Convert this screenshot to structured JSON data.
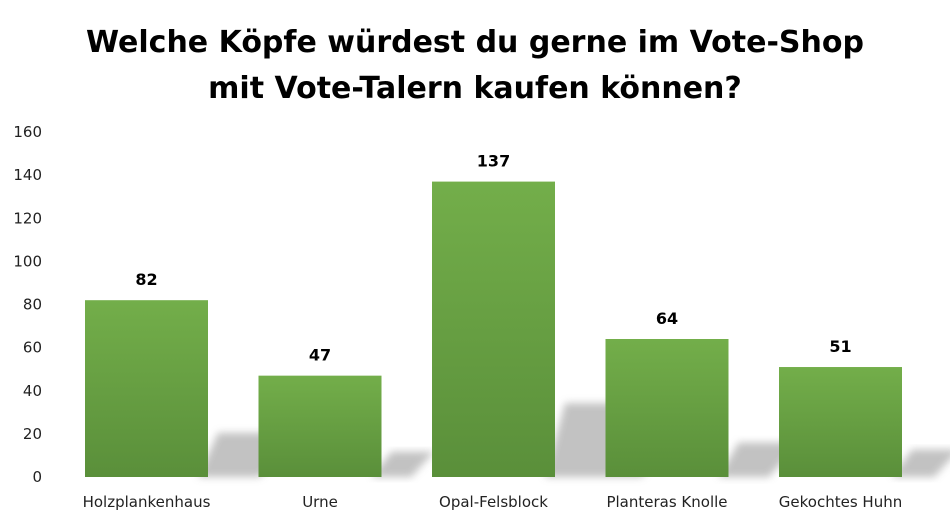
{
  "chart_data": {
    "type": "bar",
    "title": [
      "Welche Köpfe würdest du gerne im Vote-Shop",
      "mit Vote-Talern kaufen können?"
    ],
    "categories": [
      "Holzplankenhaus",
      "Urne",
      "Opal-Felsblock",
      "Planteras Knolle",
      "Gekochtes Huhn"
    ],
    "values": [
      82,
      47,
      137,
      64,
      51
    ],
    "data_labels": [
      "82",
      "47",
      "137",
      "64",
      "51"
    ],
    "xlabel": "",
    "ylabel": "",
    "ylim": [
      0,
      160
    ],
    "yticks": [
      0,
      20,
      40,
      60,
      80,
      100,
      120,
      140,
      160
    ],
    "grid": false,
    "legend": "none",
    "colors": {
      "bar_top": "#73ae4a",
      "bar_bottom": "#5a8f3a",
      "shadow": "#b8b8b8"
    }
  }
}
